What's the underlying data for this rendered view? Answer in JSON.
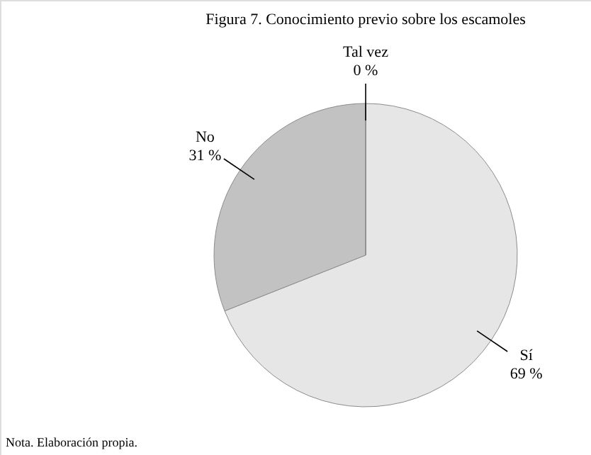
{
  "chart_data": {
    "type": "pie",
    "title": "Figura 7. Conocimiento previo sobre los escamoles",
    "categories": [
      "Sí",
      "No",
      "Tal vez"
    ],
    "values": [
      69,
      31,
      0
    ],
    "colors": [
      "#e6e6e6",
      "#c2c2c2",
      "#9e9e9e"
    ],
    "value_labels": [
      "69 %",
      "31 %",
      "0 %"
    ],
    "annotations": [
      "Nota. Elaboración propia."
    ]
  }
}
